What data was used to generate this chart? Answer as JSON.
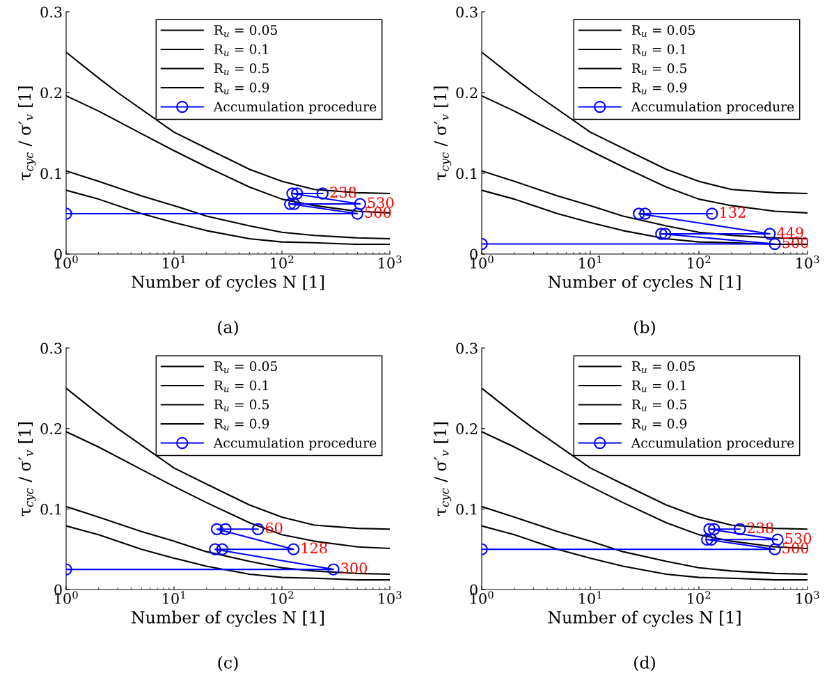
{
  "chart_data": [
    {
      "type": "line",
      "xlabel": "Number of cycles N [1]",
      "ylabel": "τ$_{cyc}$ / σ′$_{v}$ [1]",
      "log": "x",
      "xlim": [
        1,
        1000
      ],
      "xticks": [
        {
          "value": 1,
          "label": "10$^{0}$"
        },
        {
          "value": 10,
          "label": "10$^{1}$"
        },
        {
          "value": 100,
          "label": "10$^{2}$"
        },
        {
          "value": 1000,
          "label": "10$^{3}$"
        }
      ],
      "ylim": [
        0,
        0.3
      ],
      "yticks": [
        0,
        0.1,
        0.2,
        0.3
      ],
      "legend": "top right",
      "grid": false,
      "series": [
        {
          "name": "R$_{u}$ = 0.05",
          "color": "#000000",
          "x": [
            1,
            2,
            3,
            10,
            20,
            50,
            100,
            200,
            500,
            1000
          ],
          "values": [
            0.25,
            0.218,
            0.2,
            0.151,
            0.131,
            0.105,
            0.09,
            0.08,
            0.076,
            0.075
          ]
        },
        {
          "name": "R$_{u}$ = 0.1",
          "color": "#000000",
          "x": [
            1,
            2,
            5,
            10,
            20,
            50,
            100,
            200,
            500,
            1000
          ],
          "values": [
            0.196,
            0.177,
            0.149,
            0.128,
            0.108,
            0.083,
            0.068,
            0.06,
            0.053,
            0.051
          ]
        },
        {
          "name": "R$_{u}$ = 0.5",
          "color": "#000000",
          "x": [
            1,
            2,
            5,
            10,
            20,
            50,
            100,
            200,
            500,
            1000
          ],
          "values": [
            0.103,
            0.09,
            0.072,
            0.06,
            0.047,
            0.035,
            0.027,
            0.023,
            0.02,
            0.019
          ]
        },
        {
          "name": "R$_{u}$ = 0.9",
          "color": "#000000",
          "x": [
            1,
            2,
            5,
            10,
            20,
            50,
            100,
            200,
            500,
            1000
          ],
          "values": [
            0.079,
            0.068,
            0.05,
            0.039,
            0.029,
            0.019,
            0.015,
            0.014,
            0.012,
            0.012
          ]
        },
        {
          "name": "Accumulation procedure",
          "color": "#0000ff",
          "marker": "circle",
          "x": [
            1,
            500,
            119,
            130,
            530,
            125,
            138,
            238
          ],
          "values": [
            0.05,
            0.05,
            0.062,
            0.062,
            0.062,
            0.075,
            0.075,
            0.075
          ]
        }
      ],
      "annotations": [
        {
          "text": "500",
          "x": 500,
          "y": 0.05
        },
        {
          "text": "530",
          "x": 530,
          "y": 0.062
        },
        {
          "text": "238",
          "x": 238,
          "y": 0.075
        },
        "(a)"
      ]
    },
    {
      "type": "line",
      "xlabel": "Number of cycles N [1]",
      "ylabel": "τ$_{cyc}$ / σ′$_{v}$ [1]",
      "log": "x",
      "xlim": [
        1,
        1000
      ],
      "xticks": [
        {
          "value": 1,
          "label": "10$^{0}$"
        },
        {
          "value": 10,
          "label": "10$^{1}$"
        },
        {
          "value": 100,
          "label": "10$^{2}$"
        },
        {
          "value": 1000,
          "label": "10$^{3}$"
        }
      ],
      "ylim": [
        0,
        0.3
      ],
      "yticks": [
        0,
        0.1,
        0.2,
        0.3
      ],
      "legend": "top right",
      "grid": false,
      "series": [
        {
          "name": "R$_{u}$ = 0.05",
          "color": "#000000",
          "x": [
            1,
            2,
            3,
            10,
            20,
            50,
            100,
            200,
            500,
            1000
          ],
          "values": [
            0.25,
            0.218,
            0.2,
            0.151,
            0.131,
            0.105,
            0.09,
            0.08,
            0.076,
            0.075
          ]
        },
        {
          "name": "R$_{u}$ = 0.1",
          "color": "#000000",
          "x": [
            1,
            2,
            5,
            10,
            20,
            50,
            100,
            200,
            500,
            1000
          ],
          "values": [
            0.196,
            0.177,
            0.149,
            0.128,
            0.108,
            0.083,
            0.068,
            0.06,
            0.053,
            0.051
          ]
        },
        {
          "name": "R$_{u}$ = 0.5",
          "color": "#000000",
          "x": [
            1,
            2,
            5,
            10,
            20,
            50,
            100,
            200,
            500,
            1000
          ],
          "values": [
            0.103,
            0.09,
            0.072,
            0.06,
            0.047,
            0.035,
            0.027,
            0.023,
            0.02,
            0.019
          ]
        },
        {
          "name": "R$_{u}$ = 0.9",
          "color": "#000000",
          "x": [
            1,
            2,
            5,
            10,
            20,
            50,
            100,
            200,
            500,
            1000
          ],
          "values": [
            0.079,
            0.068,
            0.05,
            0.039,
            0.029,
            0.019,
            0.015,
            0.014,
            0.012,
            0.012
          ]
        },
        {
          "name": "Accumulation procedure",
          "color": "#0000ff",
          "marker": "circle",
          "x": [
            1,
            500,
            45,
            49,
            449,
            28,
            32,
            132
          ],
          "values": [
            0.0125,
            0.0125,
            0.025,
            0.025,
            0.025,
            0.05,
            0.05,
            0.05
          ]
        }
      ],
      "annotations": [
        {
          "text": "500",
          "x": 500,
          "y": 0.0125
        },
        {
          "text": "449",
          "x": 449,
          "y": 0.025
        },
        {
          "text": "132",
          "x": 132,
          "y": 0.05
        },
        "(b)"
      ]
    },
    {
      "type": "line",
      "xlabel": "Number of cycles N [1]",
      "ylabel": "τ$_{cyc}$ / σ′$_{v}$ [1]",
      "log": "x",
      "xlim": [
        1,
        1000
      ],
      "xticks": [
        {
          "value": 1,
          "label": "10$^{0}$"
        },
        {
          "value": 10,
          "label": "10$^{1}$"
        },
        {
          "value": 100,
          "label": "10$^{2}$"
        },
        {
          "value": 1000,
          "label": "10$^{3}$"
        }
      ],
      "ylim": [
        0,
        0.3
      ],
      "yticks": [
        0,
        0.1,
        0.2,
        0.3
      ],
      "legend": "top right",
      "grid": false,
      "series": [
        {
          "name": "R$_{u}$ = 0.05",
          "color": "#000000",
          "x": [
            1,
            2,
            3,
            10,
            20,
            50,
            100,
            200,
            500,
            1000
          ],
          "values": [
            0.25,
            0.218,
            0.2,
            0.151,
            0.131,
            0.105,
            0.09,
            0.08,
            0.076,
            0.075
          ]
        },
        {
          "name": "R$_{u}$ = 0.1",
          "color": "#000000",
          "x": [
            1,
            2,
            5,
            10,
            20,
            50,
            100,
            200,
            500,
            1000
          ],
          "values": [
            0.196,
            0.177,
            0.149,
            0.128,
            0.108,
            0.083,
            0.068,
            0.06,
            0.053,
            0.051
          ]
        },
        {
          "name": "R$_{u}$ = 0.5",
          "color": "#000000",
          "x": [
            1,
            2,
            5,
            10,
            20,
            50,
            100,
            200,
            500,
            1000
          ],
          "values": [
            0.103,
            0.09,
            0.072,
            0.06,
            0.047,
            0.035,
            0.027,
            0.023,
            0.02,
            0.019
          ]
        },
        {
          "name": "R$_{u}$ = 0.9",
          "color": "#000000",
          "x": [
            1,
            2,
            5,
            10,
            20,
            50,
            100,
            200,
            500,
            1000
          ],
          "values": [
            0.079,
            0.068,
            0.05,
            0.039,
            0.029,
            0.019,
            0.015,
            0.014,
            0.012,
            0.012
          ]
        },
        {
          "name": "Accumulation procedure",
          "color": "#0000ff",
          "marker": "circle",
          "x": [
            1,
            300,
            24,
            28,
            128,
            25,
            30,
            60
          ],
          "values": [
            0.025,
            0.025,
            0.05,
            0.05,
            0.05,
            0.075,
            0.075,
            0.075
          ]
        }
      ],
      "annotations": [
        {
          "text": "300",
          "x": 300,
          "y": 0.025
        },
        {
          "text": "128",
          "x": 128,
          "y": 0.05
        },
        {
          "text": "60",
          "x": 60,
          "y": 0.075
        },
        "(c)"
      ]
    },
    {
      "type": "line",
      "xlabel": "Number of cycles N [1]",
      "ylabel": "τ$_{cyc}$ / σ′$_{v}$ [1]",
      "log": "x",
      "xlim": [
        1,
        1000
      ],
      "xticks": [
        {
          "value": 1,
          "label": "10$^{0}$"
        },
        {
          "value": 10,
          "label": "10$^{1}$"
        },
        {
          "value": 100,
          "label": "10$^{2}$"
        },
        {
          "value": 1000,
          "label": "10$^{3}$"
        }
      ],
      "ylim": [
        0,
        0.3
      ],
      "yticks": [
        0,
        0.1,
        0.2,
        0.3
      ],
      "legend": "top right",
      "grid": false,
      "series": [
        {
          "name": "R$_{u}$ = 0.05",
          "color": "#000000",
          "x": [
            1,
            2,
            3,
            10,
            20,
            50,
            100,
            200,
            500,
            1000
          ],
          "values": [
            0.25,
            0.218,
            0.2,
            0.151,
            0.131,
            0.105,
            0.09,
            0.08,
            0.076,
            0.075
          ]
        },
        {
          "name": "R$_{u}$ = 0.1",
          "color": "#000000",
          "x": [
            1,
            2,
            5,
            10,
            20,
            50,
            100,
            200,
            500,
            1000
          ],
          "values": [
            0.196,
            0.177,
            0.149,
            0.128,
            0.108,
            0.083,
            0.068,
            0.06,
            0.053,
            0.051
          ]
        },
        {
          "name": "R$_{u}$ = 0.5",
          "color": "#000000",
          "x": [
            1,
            2,
            5,
            10,
            20,
            50,
            100,
            200,
            500,
            1000
          ],
          "values": [
            0.103,
            0.09,
            0.072,
            0.06,
            0.047,
            0.035,
            0.027,
            0.023,
            0.02,
            0.019
          ]
        },
        {
          "name": "R$_{u}$ = 0.9",
          "color": "#000000",
          "x": [
            1,
            2,
            5,
            10,
            20,
            50,
            100,
            200,
            500,
            1000
          ],
          "values": [
            0.079,
            0.068,
            0.05,
            0.039,
            0.029,
            0.019,
            0.015,
            0.014,
            0.012,
            0.012
          ]
        },
        {
          "name": "Accumulation procedure",
          "color": "#0000ff",
          "marker": "circle",
          "x": [
            1,
            500,
            119,
            130,
            530,
            125,
            138,
            238
          ],
          "values": [
            0.05,
            0.05,
            0.062,
            0.062,
            0.062,
            0.075,
            0.075,
            0.075
          ]
        }
      ],
      "annotations": [
        {
          "text": "500",
          "x": 500,
          "y": 0.05
        },
        {
          "text": "530",
          "x": 530,
          "y": 0.062
        },
        {
          "text": "238",
          "x": 238,
          "y": 0.075
        },
        "(d)"
      ]
    }
  ]
}
